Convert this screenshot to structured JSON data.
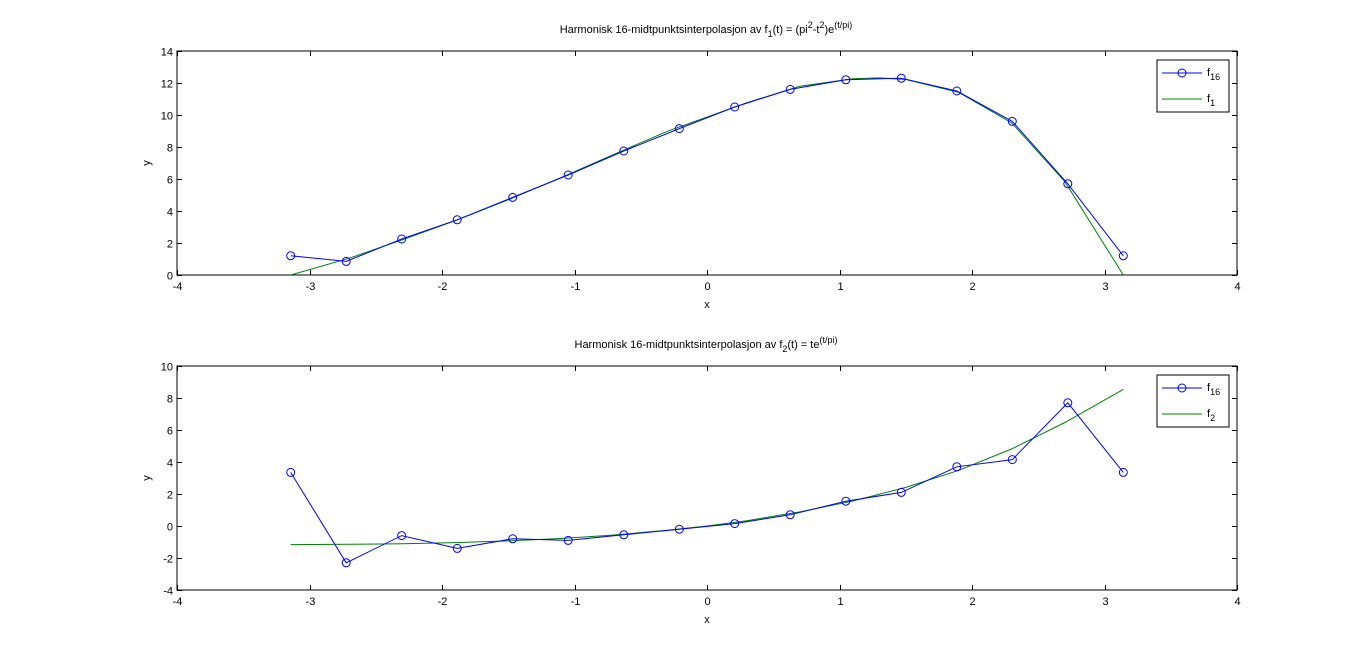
{
  "chart_data": [
    {
      "type": "line",
      "title_parts": [
        {
          "t": "Harmonisk 16-midtpunktsinterpolasjon av f"
        },
        {
          "t": "1",
          "sub": true
        },
        {
          "t": "(t) = (pi"
        },
        {
          "t": "2",
          "sup": true
        },
        {
          "t": "-t"
        },
        {
          "t": "2",
          "sup": true
        },
        {
          "t": ")e"
        },
        {
          "t": "(t/pi)",
          "sup": true
        }
      ],
      "xlabel": "x",
      "ylabel": "y",
      "xlim": [
        -4,
        4
      ],
      "ylim": [
        0,
        14
      ],
      "xticks": [
        -4,
        -3,
        -2,
        -1,
        0,
        1,
        2,
        3,
        4
      ],
      "yticks": [
        0,
        2,
        4,
        6,
        8,
        10,
        12,
        14
      ],
      "legend_position": "top-right",
      "series": [
        {
          "legend_base": "f",
          "legend_sub": "16",
          "color": "#0000ff",
          "marker": "circle",
          "x": [
            -3.1416,
            -2.7227,
            -2.3038,
            -1.885,
            -1.4661,
            -1.0472,
            -0.6283,
            -0.2094,
            0.2094,
            0.6283,
            1.0472,
            1.4661,
            1.885,
            2.3038,
            2.7227,
            3.1416
          ],
          "y": [
            1.2,
            0.85,
            2.25,
            3.45,
            4.85,
            6.25,
            7.75,
            9.15,
            10.5,
            11.6,
            12.2,
            12.3,
            11.5,
            9.6,
            5.7,
            1.2
          ]
        },
        {
          "legend_base": "f",
          "legend_sub": "1",
          "color": "#008000",
          "marker": "none",
          "x": [
            -3.1416,
            -2.7,
            -2.3,
            -1.9,
            -1.5,
            -1.1,
            -0.7,
            -0.3,
            0.0,
            0.3,
            0.7,
            1.1,
            1.3,
            1.5,
            1.9,
            2.3,
            2.7,
            3.1416
          ],
          "y": [
            0.0,
            1.05,
            2.2,
            3.4,
            4.7,
            6.1,
            7.55,
            8.98,
            9.87,
            10.77,
            11.8,
            12.27,
            12.32,
            12.22,
            11.41,
            9.5,
            5.84,
            0.0
          ]
        }
      ]
    },
    {
      "type": "line",
      "title_parts": [
        {
          "t": "Harmonisk 16-midtpunktsinterpolasjon av f"
        },
        {
          "t": "2",
          "sub": true
        },
        {
          "t": "(t) = te"
        },
        {
          "t": "(t/pi)",
          "sup": true
        }
      ],
      "xlabel": "x",
      "ylabel": "y",
      "xlim": [
        -4,
        4
      ],
      "ylim": [
        -4,
        10
      ],
      "xticks": [
        -4,
        -3,
        -2,
        -1,
        0,
        1,
        2,
        3,
        4
      ],
      "yticks": [
        -4,
        -2,
        0,
        2,
        4,
        6,
        8,
        10
      ],
      "legend_position": "top-right",
      "series": [
        {
          "legend_base": "f",
          "legend_sub": "16",
          "color": "#0000ff",
          "marker": "circle",
          "x": [
            -3.1416,
            -2.7227,
            -2.3038,
            -1.885,
            -1.4661,
            -1.0472,
            -0.6283,
            -0.2094,
            0.2094,
            0.6283,
            1.0472,
            1.4661,
            1.885,
            2.3038,
            2.7227,
            3.1416
          ],
          "y": [
            3.35,
            -2.3,
            -0.6,
            -1.4,
            -0.8,
            -0.9,
            -0.55,
            -0.2,
            0.15,
            0.7,
            1.55,
            2.1,
            3.7,
            4.15,
            7.7,
            3.35
          ]
        },
        {
          "legend_base": "f",
          "legend_sub": "2",
          "color": "#008000",
          "marker": "none",
          "x": [
            -3.1416,
            -2.7,
            -2.3,
            -1.9,
            -1.5,
            -1.1,
            -0.7,
            -0.3,
            0.0,
            0.3,
            0.7,
            1.1,
            1.5,
            1.9,
            2.3,
            2.7,
            3.1416
          ],
          "y": [
            -1.16,
            -1.14,
            -1.11,
            -1.04,
            -0.93,
            -0.78,
            -0.56,
            -0.27,
            0.0,
            0.33,
            0.88,
            1.56,
            2.41,
            3.48,
            4.82,
            6.47,
            8.54
          ]
        }
      ]
    }
  ]
}
